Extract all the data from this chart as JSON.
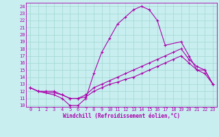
{
  "xlabel": "Windchill (Refroidissement éolien,°C)",
  "bg_color": "#c8eef0",
  "grid_color": "#a0d8d0",
  "line_color": "#aa00aa",
  "axis_color": "#aa00aa",
  "xlim": [
    -0.5,
    23.5
  ],
  "ylim": [
    9.8,
    24.5
  ],
  "xticks": [
    0,
    1,
    2,
    3,
    4,
    5,
    6,
    7,
    8,
    9,
    10,
    11,
    12,
    13,
    14,
    15,
    16,
    17,
    18,
    19,
    20,
    21,
    22,
    23
  ],
  "yticks": [
    10,
    11,
    12,
    13,
    14,
    15,
    16,
    17,
    18,
    19,
    20,
    21,
    22,
    23,
    24
  ],
  "line1_x": [
    0,
    1,
    3,
    4,
    5,
    6,
    7,
    8,
    9,
    10,
    11,
    12,
    13,
    14,
    15,
    16,
    17,
    19,
    20,
    21,
    22,
    23
  ],
  "line1_y": [
    12.5,
    12.0,
    11.5,
    11.0,
    10.0,
    10.0,
    11.0,
    14.5,
    17.5,
    19.5,
    21.5,
    22.5,
    23.5,
    24.0,
    23.5,
    22.0,
    18.5,
    19.0,
    17.0,
    15.0,
    15.0,
    13.0
  ],
  "line2_x": [
    0,
    1,
    2,
    3,
    4,
    5,
    6,
    7,
    8,
    9,
    10,
    11,
    12,
    13,
    14,
    15,
    16,
    17,
    18,
    19,
    20,
    21,
    22,
    23
  ],
  "line2_y": [
    12.5,
    12.0,
    12.0,
    12.0,
    11.5,
    11.0,
    11.0,
    11.5,
    12.5,
    13.0,
    13.5,
    14.0,
    14.5,
    15.0,
    15.5,
    16.0,
    16.5,
    17.0,
    17.5,
    18.0,
    16.5,
    15.5,
    15.0,
    13.0
  ],
  "line3_x": [
    0,
    1,
    2,
    3,
    4,
    5,
    6,
    7,
    8,
    9,
    10,
    11,
    12,
    13,
    14,
    15,
    16,
    17,
    18,
    19,
    20,
    21,
    22,
    23
  ],
  "line3_y": [
    12.5,
    12.0,
    11.8,
    11.8,
    11.5,
    11.0,
    11.0,
    11.2,
    12.0,
    12.5,
    13.0,
    13.3,
    13.7,
    14.0,
    14.5,
    15.0,
    15.5,
    16.0,
    16.5,
    17.0,
    16.0,
    15.0,
    14.5,
    13.0
  ],
  "tick_fontsize": 5.0,
  "xlabel_fontsize": 5.5,
  "marker_size": 3.0,
  "linewidth": 0.8
}
